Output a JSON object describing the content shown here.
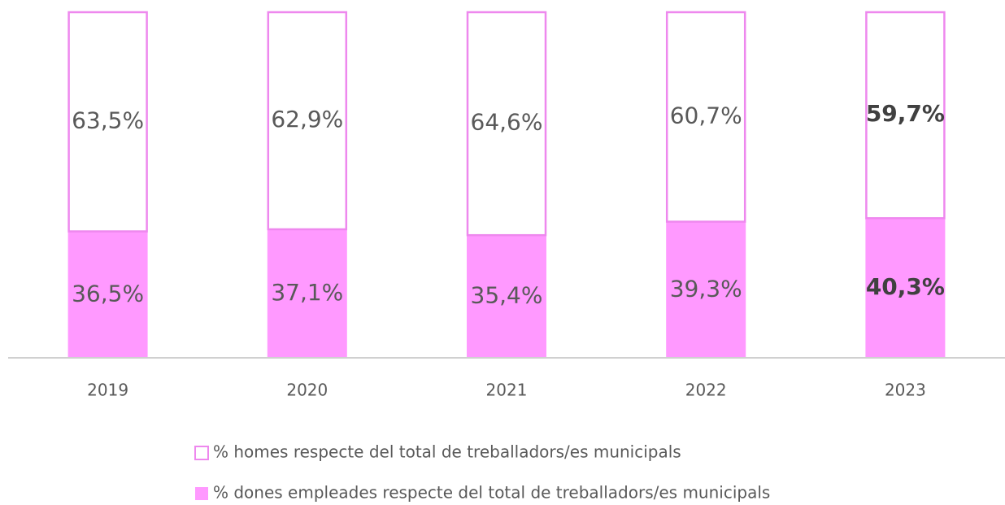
{
  "chart_data": {
    "type": "stacked_bar",
    "categories": [
      "2019",
      "2020",
      "2021",
      "2022",
      "2023"
    ],
    "series": [
      {
        "name": "% homes respecte del total de treballadors/es municipals",
        "color": "#ee88ee",
        "style": "outline",
        "values": [
          63.5,
          62.9,
          64.6,
          60.7,
          59.7
        ],
        "value_labels": [
          "63,5%",
          "62,9%",
          "64,6%",
          "60,7%",
          "59,7%"
        ]
      },
      {
        "name": "% dones empleades respecte del total de treballadors/es municipals",
        "color": "#ff99ff",
        "style": "filled",
        "values": [
          36.5,
          37.1,
          35.4,
          39.3,
          40.3
        ],
        "value_labels": [
          "36,5%",
          "37,1%",
          "35,4%",
          "39,3%",
          "40,3%"
        ]
      }
    ],
    "highlight_category": "2023",
    "ylim": [
      0,
      100
    ]
  }
}
